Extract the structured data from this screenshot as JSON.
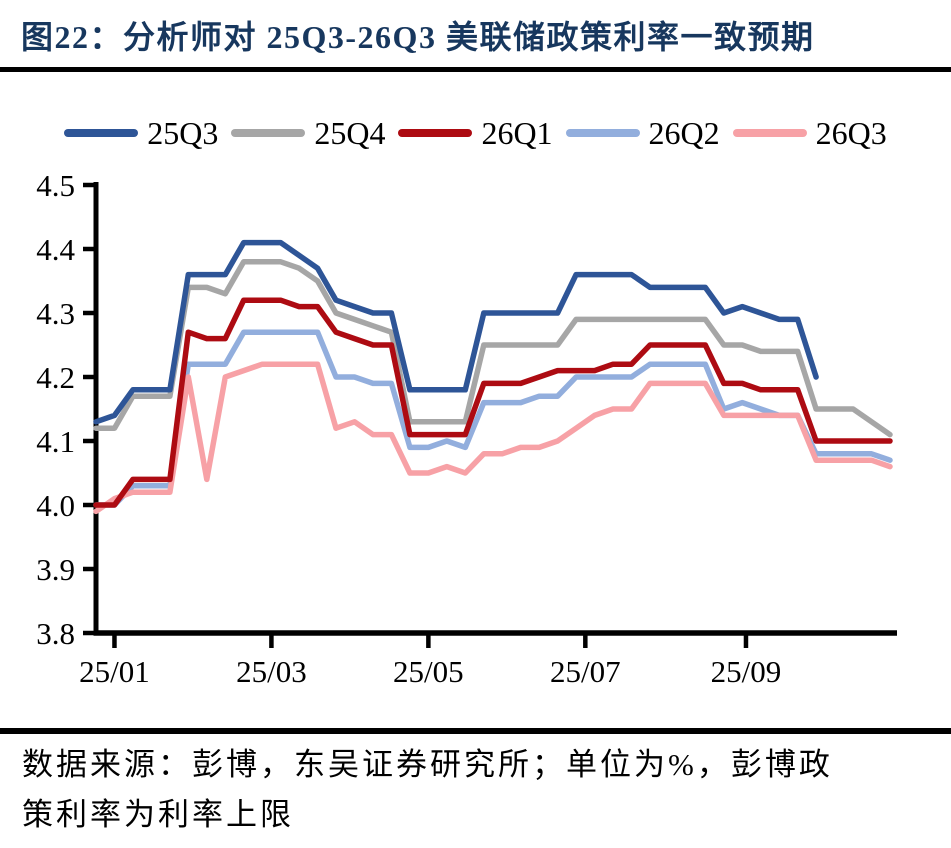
{
  "header": {
    "title": "图22：分析师对 25Q3-26Q3 美联储政策利率一致预期"
  },
  "footer": {
    "source_line1": "数据来源：彭博，东吴证券研究所；单位为%，彭博政",
    "source_line2": "策利率为利率上限"
  },
  "colors": {
    "title_navy": "#17375e",
    "rule_black": "#000000",
    "axis_black": "#000000"
  },
  "chart_data": {
    "type": "line",
    "title": "分析师对 25Q3-26Q3 美联储政策利率一致预期",
    "unit": "%",
    "legend_position": "top",
    "grid": false,
    "y_axis": {
      "min": 3.8,
      "max": 4.5,
      "step": 0.1,
      "tick_labels": [
        "4.5",
        "4.4",
        "4.3",
        "4.2",
        "4.1",
        "4.0",
        "3.9",
        "3.8"
      ]
    },
    "x_axis": {
      "description": "weekly observations, Jan 2025 to early Nov 2025",
      "total_weeks": 43,
      "ticks": [
        {
          "label": "25/01",
          "w": 1.0
        },
        {
          "label": "25/03",
          "w": 9.5
        },
        {
          "label": "25/05",
          "w": 18.0
        },
        {
          "label": "25/07",
          "w": 26.5
        },
        {
          "label": "25/09",
          "w": 35.2
        }
      ]
    },
    "draw_order": [
      "25Q4",
      "26Q2",
      "26Q3",
      "26Q1",
      "25Q3"
    ],
    "series": [
      {
        "name": "25Q3",
        "color": "#2e5597",
        "values": [
          4.13,
          4.14,
          4.18,
          4.18,
          4.18,
          4.36,
          4.36,
          4.36,
          4.41,
          4.41,
          4.41,
          4.39,
          4.37,
          4.32,
          4.31,
          4.3,
          4.3,
          4.18,
          4.18,
          4.18,
          4.18,
          4.3,
          4.3,
          4.3,
          4.3,
          4.3,
          4.36,
          4.36,
          4.36,
          4.36,
          4.34,
          4.34,
          4.34,
          4.34,
          4.3,
          4.31,
          4.3,
          4.29,
          4.29,
          4.2,
          null,
          null,
          null,
          null
        ]
      },
      {
        "name": "25Q4",
        "color": "#a6a6a6",
        "values": [
          4.12,
          4.12,
          4.17,
          4.17,
          4.17,
          4.34,
          4.34,
          4.33,
          4.38,
          4.38,
          4.38,
          4.37,
          4.35,
          4.3,
          4.29,
          4.28,
          4.27,
          4.13,
          4.13,
          4.13,
          4.13,
          4.25,
          4.25,
          4.25,
          4.25,
          4.25,
          4.29,
          4.29,
          4.29,
          4.29,
          4.29,
          4.29,
          4.29,
          4.29,
          4.25,
          4.25,
          4.24,
          4.24,
          4.24,
          4.15,
          4.15,
          4.15,
          4.13,
          4.11
        ]
      },
      {
        "name": "26Q1",
        "color": "#ad0b12",
        "values": [
          4.0,
          4.0,
          4.04,
          4.04,
          4.04,
          4.27,
          4.26,
          4.26,
          4.32,
          4.32,
          4.32,
          4.31,
          4.31,
          4.27,
          4.26,
          4.25,
          4.25,
          4.11,
          4.11,
          4.11,
          4.11,
          4.19,
          4.19,
          4.19,
          4.2,
          4.21,
          4.21,
          4.21,
          4.22,
          4.22,
          4.25,
          4.25,
          4.25,
          4.25,
          4.19,
          4.19,
          4.18,
          4.18,
          4.18,
          4.1,
          4.1,
          4.1,
          4.1,
          4.1
        ]
      },
      {
        "name": "26Q2",
        "color": "#92aedd",
        "values": [
          4.0,
          4.0,
          4.03,
          4.03,
          4.03,
          4.22,
          4.22,
          4.22,
          4.27,
          4.27,
          4.27,
          4.27,
          4.27,
          4.2,
          4.2,
          4.19,
          4.19,
          4.09,
          4.09,
          4.1,
          4.09,
          4.16,
          4.16,
          4.16,
          4.17,
          4.17,
          4.2,
          4.2,
          4.2,
          4.2,
          4.22,
          4.22,
          4.22,
          4.22,
          4.15,
          4.16,
          4.15,
          4.14,
          4.14,
          4.08,
          4.08,
          4.08,
          4.08,
          4.07
        ]
      },
      {
        "name": "26Q3",
        "color": "#f7a1a6",
        "values": [
          3.99,
          4.01,
          4.02,
          4.02,
          4.02,
          4.2,
          4.04,
          4.2,
          4.21,
          4.22,
          4.22,
          4.22,
          4.22,
          4.12,
          4.13,
          4.11,
          4.11,
          4.05,
          4.05,
          4.06,
          4.05,
          4.08,
          4.08,
          4.09,
          4.09,
          4.1,
          4.12,
          4.14,
          4.15,
          4.15,
          4.19,
          4.19,
          4.19,
          4.19,
          4.14,
          4.14,
          4.14,
          4.14,
          4.14,
          4.07,
          4.07,
          4.07,
          4.07,
          4.06
        ]
      }
    ]
  }
}
